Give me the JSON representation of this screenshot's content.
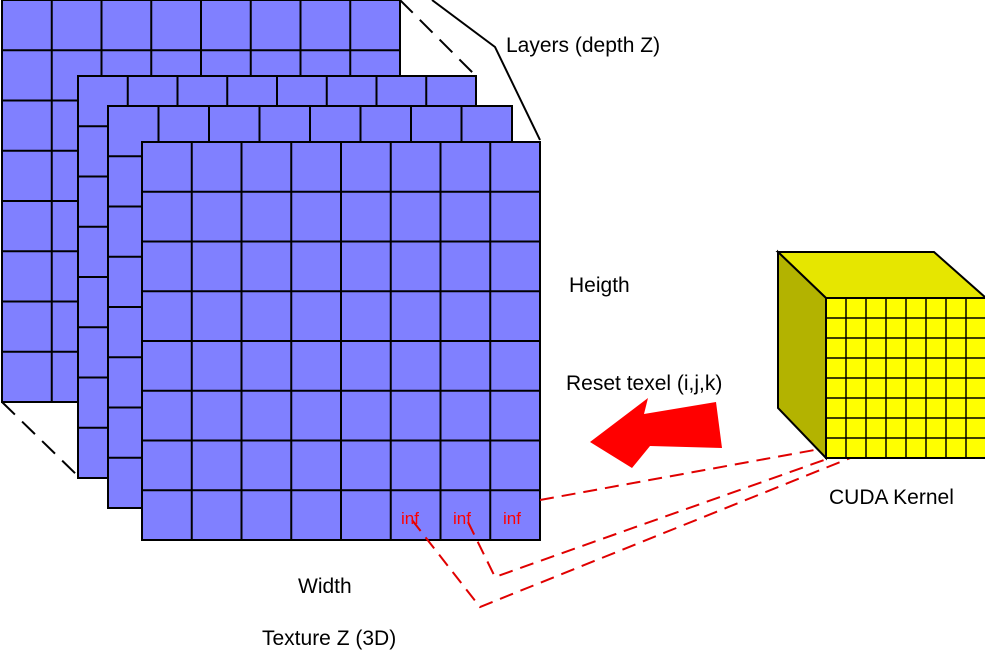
{
  "labels": {
    "layers": "Layers (depth Z)",
    "height": "Heigth",
    "reset": "Reset texel (i,j,k)",
    "cuda": "CUDA Kernel",
    "width": "Width",
    "texture": "Texture Z (3D)"
  },
  "cells": [
    "inf",
    "inf",
    "inf"
  ],
  "colors": {
    "texture_face": "#8080ff",
    "cube_front": "#ffff00",
    "cube_top": "#e6e600",
    "cube_side": "#b3b300",
    "arrow": "#ff0000",
    "link_lines": "#e00000"
  }
}
